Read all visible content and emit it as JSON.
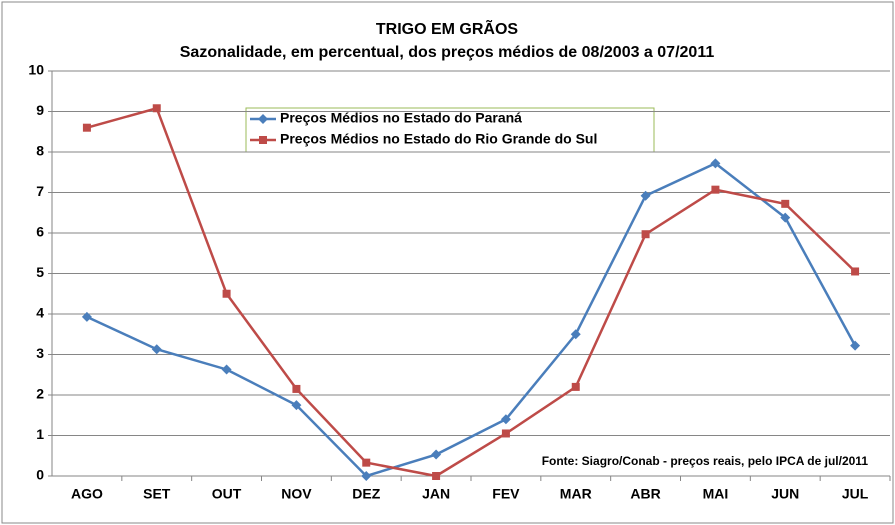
{
  "chart_data": {
    "type": "line",
    "title": "TRIGO EM GRÃOS",
    "subtitle": "Sazonalidade, em percentual, dos preços médios de 08/2003 a 07/2011",
    "categories": [
      "AGO",
      "SET",
      "OUT",
      "NOV",
      "DEZ",
      "JAN",
      "FEV",
      "MAR",
      "ABR",
      "MAI",
      "JUN",
      "JUL"
    ],
    "series": [
      {
        "name": "Preços Médios no Estado do Paraná",
        "color": "#4a7ebb",
        "marker": "diamond",
        "values": [
          3.93,
          3.13,
          2.63,
          1.75,
          0,
          0.53,
          1.4,
          3.5,
          6.92,
          7.72,
          6.38,
          3.22
        ]
      },
      {
        "name": "Preços Médios no Estado do Rio Grande do Sul",
        "color": "#be4b48",
        "marker": "square",
        "values": [
          8.6,
          9.08,
          4.5,
          2.15,
          0.33,
          0,
          1.05,
          2.2,
          5.97,
          7.07,
          6.72,
          5.05
        ]
      }
    ],
    "ylim": [
      0,
      10
    ],
    "yticks": [
      0,
      1,
      2,
      3,
      4,
      5,
      6,
      7,
      8,
      9,
      10
    ],
    "grid": true,
    "annotation": "Fonte: Siagro/Conab - preços reais, pelo IPCA de jul/2011"
  }
}
